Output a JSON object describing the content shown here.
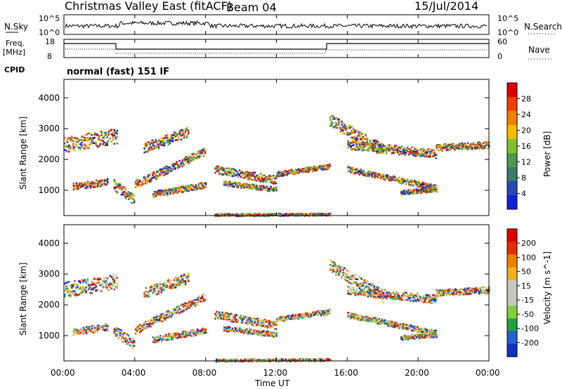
{
  "header": {
    "station": "Christmas Valley East (fitACF)",
    "beam": "Beam 04",
    "date": "15/Jul/2014"
  },
  "panels": {
    "nsky": {
      "left_label": "N.Sky",
      "right_label": "N.Search",
      "ticks_left": [
        "10^5",
        "10^0"
      ],
      "ticks_right": [
        "10^5",
        "10^0"
      ]
    },
    "freq": {
      "left_label_top": "Freq.",
      "left_label_bottom": "[MHz]",
      "right_label": "Nave",
      "ticks_left": [
        "18",
        "8"
      ],
      "ticks_right": [
        "60",
        "0"
      ]
    },
    "cpid": {
      "label": "CPID",
      "text": "normal (fast) 151 IF"
    }
  },
  "chart_data": [
    {
      "type": "heatmap",
      "name": "power",
      "ylabel": "Slant Range [km]",
      "yticks": [
        1000,
        2000,
        3000,
        4000
      ],
      "ylim": [
        180,
        4600
      ],
      "colorbar_label": "Power [dB]",
      "colorbar_ticks": [
        "28",
        "24",
        "20",
        "16",
        "12",
        "8",
        "4"
      ],
      "colors": [
        "#1020d8",
        "#2848b0",
        "#3a7a6a",
        "#4a9a50",
        "#80c030",
        "#f0c000",
        "#f08000",
        "#f04000",
        "#e00000"
      ]
    },
    {
      "type": "heatmap",
      "name": "velocity",
      "ylabel": "Slant Range [km]",
      "yticks": [
        1000,
        2000,
        3000,
        4000
      ],
      "ylim": [
        180,
        4600
      ],
      "colorbar_label": "Velocity [m s^-1]",
      "colorbar_ticks": [
        "200",
        "100",
        "50",
        "15",
        "-15",
        "-50",
        "-100",
        "-200"
      ],
      "colors": [
        "#1030c0",
        "#2060d0",
        "#20a040",
        "#80d040",
        "#c8c8c0",
        "#c8c8c0",
        "#f0b020",
        "#f08000",
        "#e03000",
        "#e00000"
      ]
    }
  ],
  "xaxis": {
    "label": "Time UT",
    "ticks": [
      "00:00",
      "04:00",
      "08:00",
      "12:00",
      "16:00",
      "20:00",
      "00:00"
    ],
    "range_hours": [
      0,
      24
    ]
  }
}
